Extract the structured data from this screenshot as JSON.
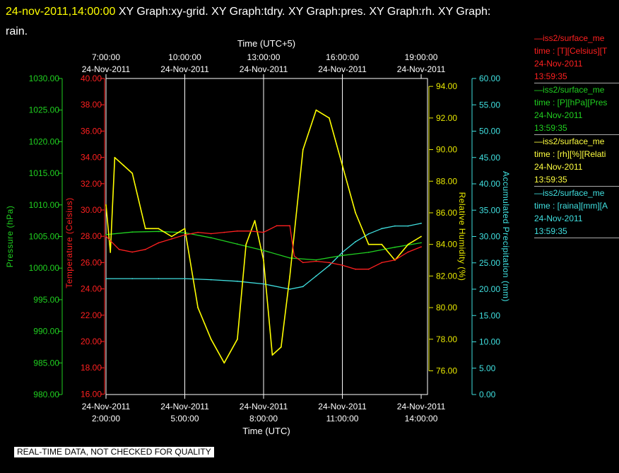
{
  "header": {
    "timestamp": "24-nov-2011,14:00:00",
    "title_rest": "  XY Graph:xy-grid.  XY Graph:tdry.  XY Graph:pres.  XY Graph:rh.  XY Graph:",
    "title_wrap": "rain."
  },
  "note": "REAL-TIME DATA, NOT CHECKED FOR QUALITY",
  "legend": [
    {
      "line1": "iss2/surface_me",
      "line2": "time : [T][Celsius][T",
      "line3": "24-Nov-2011",
      "line4": "13:59:35",
      "color": "#ff2020"
    },
    {
      "line1": "iss2/surface_me",
      "line2": "time : [P][hPa][Pres",
      "line3": "24-Nov-2011",
      "line4": "13:59:35",
      "color": "#20d020"
    },
    {
      "line1": "iss2/surface_me",
      "line2": "time : [rh][%][Relati",
      "line3": "24-Nov-2011",
      "line4": "13:59:35",
      "color": "#ffff40"
    },
    {
      "line1": "iss2/surface_me",
      "line2": "time : [raina][mm][A",
      "line3": "24-Nov-2011",
      "line4": "13:59:35",
      "color": "#40e0e0"
    }
  ],
  "chart_data": {
    "type": "line",
    "xlabel_bottom": "Time (UTC)",
    "xlabel_top": "Time (UTC+5)",
    "x_range": [
      "2:00",
      "14:00"
    ],
    "grid": "vertical lines at 5:00, 8:00, 11:00",
    "bottom_ticks": [
      {
        "date": "24-Nov-2011",
        "time": "2:00:00"
      },
      {
        "date": "24-Nov-2011",
        "time": "5:00:00"
      },
      {
        "date": "24-Nov-2011",
        "time": "8:00:00"
      },
      {
        "date": "24-Nov-2011",
        "time": "11:00:00"
      },
      {
        "date": "24-Nov-2011",
        "time": "14:00:00"
      }
    ],
    "top_ticks": [
      {
        "time": "7:00:00",
        "date": "24-Nov-2011"
      },
      {
        "time": "10:00:00",
        "date": "24-Nov-2011"
      },
      {
        "time": "13:00:00",
        "date": "24-Nov-2011"
      },
      {
        "time": "16:00:00",
        "date": "24-Nov-2011"
      },
      {
        "time": "19:00:00",
        "date": "24-Nov-2011"
      }
    ],
    "axes": {
      "pressure": {
        "label": "Pressure (hPa)",
        "color": "#20d020",
        "range": [
          980,
          1030
        ],
        "ticks": [
          "980.00",
          "985.00",
          "990.00",
          "995.00",
          "1000.00",
          "1005.00",
          "1010.00",
          "1015.00",
          "1020.00",
          "1025.00",
          "1030.00"
        ]
      },
      "temperature": {
        "label": "Temperature (Celsius)",
        "color": "#ff2020",
        "range": [
          15,
          40
        ],
        "ticks": [
          "16.00",
          "18.00",
          "20.00",
          "22.00",
          "24.00",
          "26.00",
          "28.00",
          "30.00",
          "32.00",
          "34.00",
          "36.00",
          "38.00",
          "40.00"
        ]
      },
      "rh": {
        "label": "Relative Humidity (%)",
        "color": "#e8e800",
        "range": [
          74.5,
          94.5
        ],
        "ticks": [
          "76.00",
          "78.00",
          "80.00",
          "82.00",
          "84.00",
          "86.00",
          "88.00",
          "90.00",
          "92.00",
          "94.00"
        ]
      },
      "rain": {
        "label": "Accumulated Precipitation (mm)",
        "color": "#40e0e0",
        "range": [
          0,
          60
        ],
        "ticks": [
          "0.00",
          "5.00",
          "10.00",
          "15.00",
          "20.00",
          "25.00",
          "30.00",
          "35.00",
          "40.00",
          "45.00",
          "50.00",
          "55.00",
          "60.00"
        ]
      }
    },
    "series": [
      {
        "name": "T",
        "color": "#ff2020",
        "axis": "temperature",
        "x": [
          "2:00",
          "2:30",
          "3:00",
          "3:30",
          "4:00",
          "4:30",
          "5:00",
          "5:30",
          "6:00",
          "6:30",
          "7:00",
          "7:30",
          "8:00",
          "8:30",
          "9:00",
          "9:10",
          "9:30",
          "10:00",
          "10:30",
          "11:00",
          "11:30",
          "12:00",
          "12:30",
          "13:00",
          "13:30",
          "14:00"
        ],
        "y": [
          28.0,
          27.0,
          26.8,
          27.0,
          27.5,
          27.8,
          28.1,
          28.3,
          28.2,
          28.3,
          28.4,
          28.4,
          28.3,
          28.8,
          28.8,
          26.5,
          26.0,
          26.1,
          26.0,
          25.8,
          25.5,
          25.5,
          26.0,
          26.2,
          26.8,
          27.2
        ]
      },
      {
        "name": "P",
        "color": "#20d020",
        "axis": "pressure",
        "x": [
          "2:00",
          "3:00",
          "4:00",
          "5:00",
          "6:00",
          "7:00",
          "8:00",
          "9:00",
          "10:00",
          "11:00",
          "12:00",
          "13:00",
          "14:00"
        ],
        "y": [
          1005.3,
          1005.7,
          1005.8,
          1005.6,
          1004.8,
          1003.8,
          1002.8,
          1001.6,
          1001.3,
          1002.0,
          1002.5,
          1003.3,
          1004.0
        ]
      },
      {
        "name": "RH",
        "color": "#ffff00",
        "axis": "rh",
        "x": [
          "2:00",
          "2:10",
          "2:20",
          "2:40",
          "3:00",
          "3:30",
          "4:00",
          "4:30",
          "5:00",
          "5:30",
          "5:45",
          "6:00",
          "6:30",
          "7:00",
          "7:20",
          "7:40",
          "8:00",
          "8:20",
          "8:40",
          "9:00",
          "9:30",
          "10:00",
          "10:30",
          "11:00",
          "11:30",
          "12:00",
          "12:30",
          "13:00",
          "13:30",
          "14:00"
        ],
        "y": [
          86.5,
          83.5,
          89.5,
          89.0,
          88.5,
          85.0,
          85.0,
          84.5,
          85.0,
          80.0,
          79.0,
          78.0,
          76.5,
          78.0,
          84.0,
          85.5,
          83.0,
          77.0,
          77.5,
          82.0,
          90.0,
          92.5,
          92.0,
          89.0,
          86.0,
          84.0,
          84.0,
          83.0,
          84.0,
          84.5
        ]
      },
      {
        "name": "rain",
        "color": "#40e0e0",
        "axis": "rain",
        "x": [
          "2:00",
          "3:00",
          "4:00",
          "5:00",
          "6:00",
          "7:00",
          "8:00",
          "9:00",
          "9:30",
          "10:00",
          "10:30",
          "11:00",
          "11:30",
          "12:00",
          "12:30",
          "13:00",
          "13:30",
          "14:00"
        ],
        "y": [
          22.0,
          22.0,
          22.0,
          22.0,
          21.8,
          21.5,
          21.0,
          20.0,
          20.5,
          22.5,
          24.5,
          27.0,
          29.0,
          30.5,
          31.5,
          32.0,
          32.0,
          32.5
        ]
      }
    ]
  }
}
